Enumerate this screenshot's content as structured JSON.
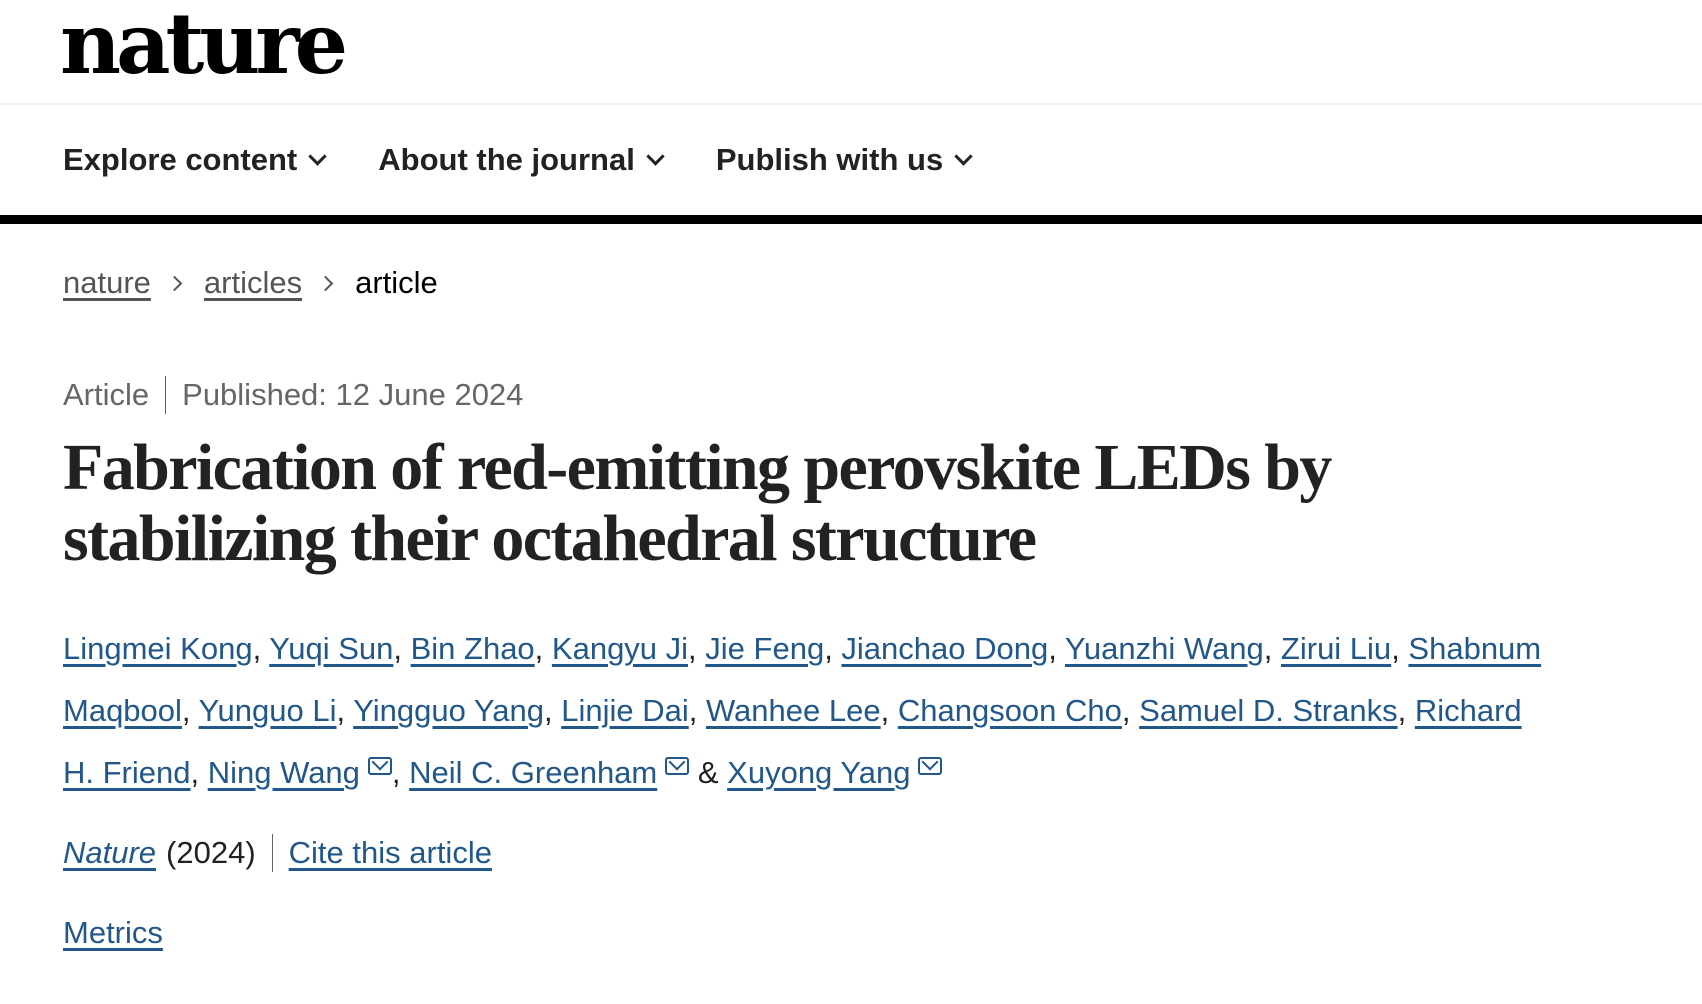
{
  "logo": "nature",
  "nav": [
    {
      "label": "Explore content"
    },
    {
      "label": "About the journal"
    },
    {
      "label": "Publish with us"
    }
  ],
  "breadcrumb": [
    "nature",
    "articles",
    "article"
  ],
  "meta": {
    "type": "Article",
    "published": "Published: 12 June 2024"
  },
  "title": "Fabrication of red-emitting perovskite LEDs by stabilizing their octahedral structure",
  "authors": [
    {
      "name": "Lingmei Kong"
    },
    {
      "name": "Yuqi Sun"
    },
    {
      "name": "Bin Zhao"
    },
    {
      "name": "Kangyu Ji"
    },
    {
      "name": "Jie Feng"
    },
    {
      "name": "Jianchao Dong"
    },
    {
      "name": "Yuanzhi Wang"
    },
    {
      "name": "Zirui Liu"
    },
    {
      "name": "Shabnum Maqbool"
    },
    {
      "name": "Yunguo Li"
    },
    {
      "name": "Yingguo Yang"
    },
    {
      "name": "Linjie Dai"
    },
    {
      "name": "Wanhee Lee"
    },
    {
      "name": "Changsoon Cho"
    },
    {
      "name": "Samuel D. Stranks"
    },
    {
      "name": "Richard H. Friend"
    },
    {
      "name": "Ning Wang",
      "email": true
    },
    {
      "name": "Neil C. Greenham",
      "email": true
    },
    {
      "name": "Xuyong Yang",
      "email": true
    }
  ],
  "author_separator": ", ",
  "author_last_separator": " & ",
  "citation": {
    "journal": "Nature",
    "year": "(2024)",
    "cite_label": "Cite this article"
  },
  "metrics_label": "Metrics",
  "colors": {
    "link": "#22578a",
    "text": "#222222",
    "muted": "#666666"
  }
}
